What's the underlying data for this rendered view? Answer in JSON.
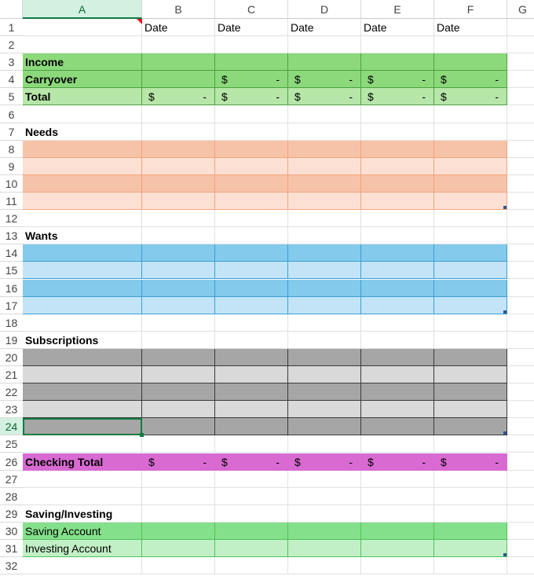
{
  "columns": [
    "A",
    "B",
    "C",
    "D",
    "E",
    "F",
    "G"
  ],
  "rows": [
    {
      "n": "1",
      "label": "",
      "bold": false,
      "bg": "#ffffff",
      "border": "#e1e1e1",
      "values": [
        "Date",
        "Date",
        "Date",
        "Date",
        "Date"
      ],
      "acct": false
    },
    {
      "n": "2",
      "label": "",
      "bold": false,
      "bg": "#ffffff",
      "border": "#e1e1e1",
      "values": [],
      "acct": false
    },
    {
      "n": "3",
      "label": "Income",
      "bold": true,
      "bg": "#8cd97c",
      "border": "#4aa340",
      "values": [],
      "acct": false
    },
    {
      "n": "4",
      "label": "Carryover",
      "bold": true,
      "bg": "#8cd97c",
      "border": "#4aa340",
      "values": [
        null,
        "-",
        "-",
        "-",
        "-"
      ],
      "acct": true
    },
    {
      "n": "5",
      "label": "Total",
      "bold": true,
      "bg": "#b6e6a8",
      "border": "#4aa340",
      "values": [
        "-",
        "-",
        "-",
        "-",
        "-"
      ],
      "acct": true
    },
    {
      "n": "6",
      "label": "",
      "bold": false,
      "bg": "#ffffff",
      "border": "#e1e1e1",
      "values": [],
      "acct": false
    },
    {
      "n": "7",
      "label": "Needs",
      "bold": true,
      "bg": "#ffffff",
      "border": "#e1e1e1",
      "values": [],
      "acct": false
    },
    {
      "n": "8",
      "label": "",
      "bold": false,
      "bg": "#f6c3a9",
      "border": "#f2a37c",
      "values": [],
      "acct": false
    },
    {
      "n": "9",
      "label": "",
      "bold": false,
      "bg": "#fde0d4",
      "border": "#f2a37c",
      "values": [],
      "acct": false
    },
    {
      "n": "10",
      "label": "",
      "bold": false,
      "bg": "#f6c3a9",
      "border": "#f2a37c",
      "values": [],
      "acct": false
    },
    {
      "n": "11",
      "label": "",
      "bold": false,
      "bg": "#fde0d4",
      "border": "#f2a37c",
      "values": [],
      "acct": false
    },
    {
      "n": "12",
      "label": "",
      "bold": false,
      "bg": "#ffffff",
      "border": "#e1e1e1",
      "values": [],
      "acct": false
    },
    {
      "n": "13",
      "label": "Wants",
      "bold": true,
      "bg": "#ffffff",
      "border": "#e1e1e1",
      "values": [],
      "acct": false
    },
    {
      "n": "14",
      "label": "",
      "bold": false,
      "bg": "#83caec",
      "border": "#3b9fd6",
      "values": [],
      "acct": false
    },
    {
      "n": "15",
      "label": "",
      "bold": false,
      "bg": "#c2e4f6",
      "border": "#3b9fd6",
      "values": [],
      "acct": false
    },
    {
      "n": "16",
      "label": "",
      "bold": false,
      "bg": "#83caec",
      "border": "#3b9fd6",
      "values": [],
      "acct": false
    },
    {
      "n": "17",
      "label": "",
      "bold": false,
      "bg": "#c2e4f6",
      "border": "#3b9fd6",
      "values": [],
      "acct": false
    },
    {
      "n": "18",
      "label": "",
      "bold": false,
      "bg": "#ffffff",
      "border": "#e1e1e1",
      "values": [],
      "acct": false
    },
    {
      "n": "19",
      "label": "Subscriptions",
      "bold": true,
      "bg": "#ffffff",
      "border": "#e1e1e1",
      "values": [],
      "acct": false
    },
    {
      "n": "20",
      "label": "",
      "bold": false,
      "bg": "#a6a6a6",
      "border": "#3a3a3a",
      "values": [],
      "acct": false
    },
    {
      "n": "21",
      "label": "",
      "bold": false,
      "bg": "#d9d9d9",
      "border": "#3a3a3a",
      "values": [],
      "acct": false
    },
    {
      "n": "22",
      "label": "",
      "bold": false,
      "bg": "#a6a6a6",
      "border": "#3a3a3a",
      "values": [],
      "acct": false
    },
    {
      "n": "23",
      "label": "",
      "bold": false,
      "bg": "#d9d9d9",
      "border": "#3a3a3a",
      "values": [],
      "acct": false
    },
    {
      "n": "24",
      "label": "",
      "bold": false,
      "bg": "#a6a6a6",
      "border": "#3a3a3a",
      "values": [],
      "acct": false
    },
    {
      "n": "25",
      "label": "",
      "bold": false,
      "bg": "#ffffff",
      "border": "#e1e1e1",
      "values": [],
      "acct": false
    },
    {
      "n": "26",
      "label": "Checking Total",
      "bold": true,
      "bg": "#d86ad2",
      "border": "#d86ad2",
      "values": [
        "-",
        "-",
        "-",
        "-",
        "-"
      ],
      "acct": true
    },
    {
      "n": "27",
      "label": "",
      "bold": false,
      "bg": "#ffffff",
      "border": "#e1e1e1",
      "values": [],
      "acct": false
    },
    {
      "n": "28",
      "label": "",
      "bold": false,
      "bg": "#ffffff",
      "border": "#e1e1e1",
      "values": [],
      "acct": false
    },
    {
      "n": "29",
      "label": "Saving/Investing",
      "bold": true,
      "bg": "#ffffff",
      "border": "#e1e1e1",
      "values": [],
      "acct": false
    },
    {
      "n": "30",
      "label": "Saving Account",
      "bold": false,
      "bg": "#84e08a",
      "border": "#4ec45a",
      "values": [],
      "acct": false
    },
    {
      "n": "31",
      "label": "Investing Account",
      "bold": false,
      "bg": "#c2f0c6",
      "border": "#4ec45a",
      "values": [],
      "acct": false
    },
    {
      "n": "32",
      "label": "",
      "bold": false,
      "bg": "#ffffff",
      "border": "#e1e1e1",
      "values": [],
      "acct": false
    }
  ],
  "currency_symbol": "$",
  "selection": {
    "column": "A",
    "row": "24"
  },
  "colors": {
    "selection_outline": "#107c41",
    "active_header_bg": "#d3f0e0",
    "note_indicator": "#e81123",
    "table_handle": "#2f5597"
  }
}
